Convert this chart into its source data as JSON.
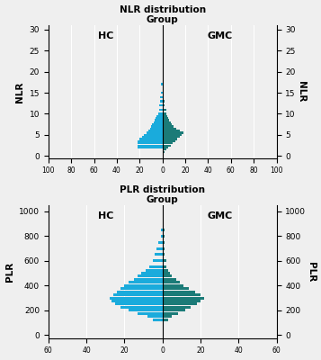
{
  "nlr_title": "NLR distribution",
  "nlr_subtitle": "Group",
  "plr_title": "PLR distribution",
  "plr_subtitle": "Group",
  "nlr_ylabel": "NLR",
  "plr_ylabel": "PLR",
  "hc_label": "HC",
  "gmc_label": "GMC",
  "nlr_yticks": [
    0,
    5,
    10,
    15,
    20,
    25,
    30
  ],
  "nlr_xticks_labels": [
    "100",
    "80",
    "60",
    "40",
    "20",
    "0",
    "20",
    "40",
    "60",
    "80",
    "100"
  ],
  "nlr_xticks_vals": [
    -100,
    -80,
    -60,
    -40,
    -20,
    0,
    20,
    40,
    60,
    80,
    100
  ],
  "plr_yticks": [
    0,
    200,
    400,
    600,
    800,
    1000
  ],
  "plr_xticks_labels": [
    "60",
    "40",
    "20",
    "0",
    "20",
    "40",
    "60"
  ],
  "plr_xticks_vals": [
    -60,
    -40,
    -20,
    0,
    20,
    40,
    60
  ],
  "hc_color": "#1AABDC",
  "gmc_color": "#1B7B78",
  "bg_color": "#EFEFEF",
  "nlr_bar_centers": [
    0.5,
    1.0,
    1.5,
    2.0,
    2.5,
    3.0,
    3.5,
    4.0,
    4.5,
    5.0,
    5.5,
    6.0,
    6.5,
    7.0,
    7.5,
    8.0,
    8.5,
    9.0,
    9.5,
    10.0,
    11.0,
    12.0,
    13.0,
    14.0,
    15.0,
    17.0,
    19.0,
    21.0,
    23.0,
    25.0
  ],
  "nlr_bar_height": 0.48,
  "nlr_hc_counts": [
    0,
    0,
    0,
    22,
    22,
    22,
    22,
    20,
    18,
    16,
    14,
    12,
    11,
    10,
    9,
    8,
    7,
    6,
    5,
    4,
    3,
    3,
    2,
    2,
    1,
    1,
    0,
    0,
    0,
    0
  ],
  "nlr_gmc_counts": [
    1,
    2,
    3,
    5,
    7,
    9,
    11,
    13,
    15,
    17,
    18,
    15,
    12,
    10,
    8,
    7,
    6,
    5,
    4,
    3,
    3,
    2,
    2,
    1,
    1,
    1,
    1,
    1,
    1,
    1
  ],
  "plr_bar_centers": [
    125,
    150,
    175,
    200,
    225,
    250,
    275,
    300,
    325,
    350,
    375,
    400,
    425,
    450,
    475,
    500,
    525,
    550,
    600,
    650,
    700,
    750,
    800,
    850
  ],
  "plr_bar_height": 22,
  "plr_hc_counts": [
    5,
    8,
    13,
    18,
    22,
    25,
    27,
    28,
    26,
    24,
    22,
    20,
    18,
    15,
    13,
    11,
    9,
    7,
    5,
    4,
    3,
    2,
    1,
    1
  ],
  "plr_gmc_counts": [
    3,
    5,
    8,
    12,
    15,
    18,
    20,
    22,
    20,
    17,
    14,
    11,
    9,
    7,
    5,
    4,
    3,
    2,
    2,
    1,
    1,
    1,
    1,
    1
  ]
}
